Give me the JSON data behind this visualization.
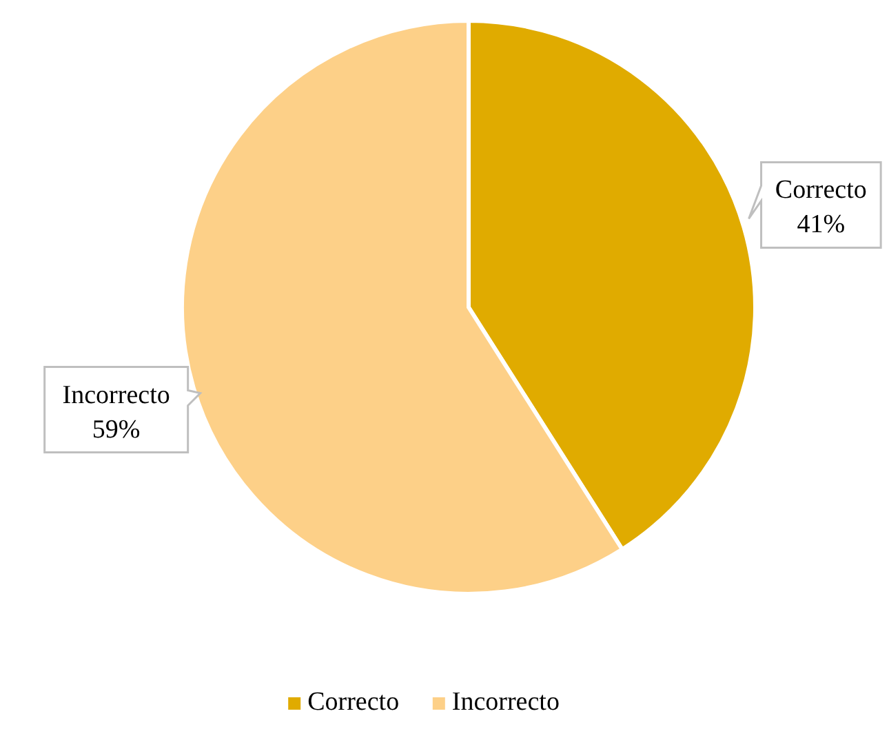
{
  "chart_data": {
    "type": "pie",
    "categories": [
      "Correcto",
      "Incorrecto"
    ],
    "values": [
      41,
      59
    ],
    "colors": [
      "#e0ab00",
      "#fdd088"
    ],
    "value_labels": [
      "41%",
      "59%"
    ],
    "legend": "bottom"
  }
}
